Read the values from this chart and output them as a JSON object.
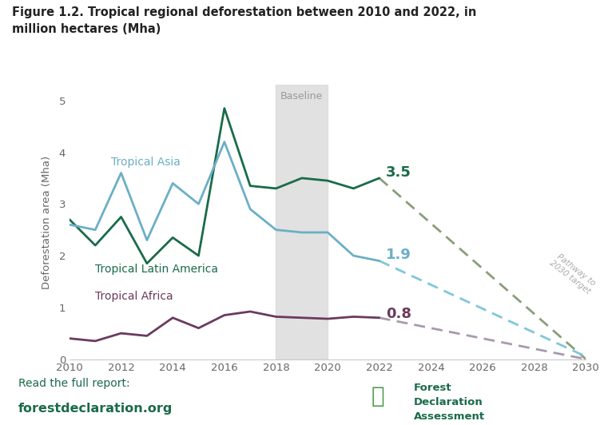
{
  "title_line1": "Figure 1.2. Tropical regional deforestation between 2010 and 2022, in",
  "title_line2": "million hectares (Mha)",
  "ylabel": "Deforestation area (Mha)",
  "background_color": "#ffffff",
  "footer_bg": "#d8ecd8",
  "footer_text1": "Read the full report:",
  "footer_text2": "forestdeclaration.org",
  "baseline_label": "Baseline",
  "pathway_label": "Pathway to\n2030 target",
  "years_historical": [
    2010,
    2011,
    2012,
    2013,
    2014,
    2015,
    2016,
    2017,
    2018,
    2019,
    2020,
    2021,
    2022
  ],
  "tropical_asia": [
    2.6,
    2.5,
    3.6,
    2.3,
    3.4,
    3.0,
    4.2,
    2.9,
    2.5,
    2.45,
    2.45,
    2.0,
    1.9
  ],
  "tropical_latin_america": [
    2.7,
    2.2,
    2.75,
    1.85,
    2.35,
    2.0,
    4.85,
    3.35,
    3.3,
    3.5,
    3.45,
    3.3,
    3.5
  ],
  "tropical_africa": [
    0.4,
    0.35,
    0.5,
    0.45,
    0.8,
    0.6,
    0.85,
    0.92,
    0.82,
    0.8,
    0.78,
    0.82,
    0.8
  ],
  "years_projection": [
    2022,
    2030
  ],
  "proj_latin_america": [
    3.5,
    0.0
  ],
  "proj_asia": [
    1.9,
    0.05
  ],
  "proj_africa": [
    0.8,
    0.0
  ],
  "color_asia": "#6bafc6",
  "color_latin_america": "#1a6b4a",
  "color_africa": "#6b3a5e",
  "color_proj_latin_america": "#8a9e7a",
  "color_proj_asia": "#7ec8d8",
  "color_proj_africa": "#a89aad",
  "label_asia": "Tropical Asia",
  "label_latin_america": "Tropical Latin America",
  "label_africa": "Tropical Africa",
  "value_2022_latin_america": "3.5",
  "value_2022_asia": "1.9",
  "value_2022_africa": "0.8",
  "baseline_xmin": 2018,
  "baseline_xmax": 2020,
  "xlim": [
    2010,
    2030
  ],
  "ylim": [
    0,
    5.3
  ],
  "yticks": [
    0,
    1,
    2,
    3,
    4,
    5
  ]
}
